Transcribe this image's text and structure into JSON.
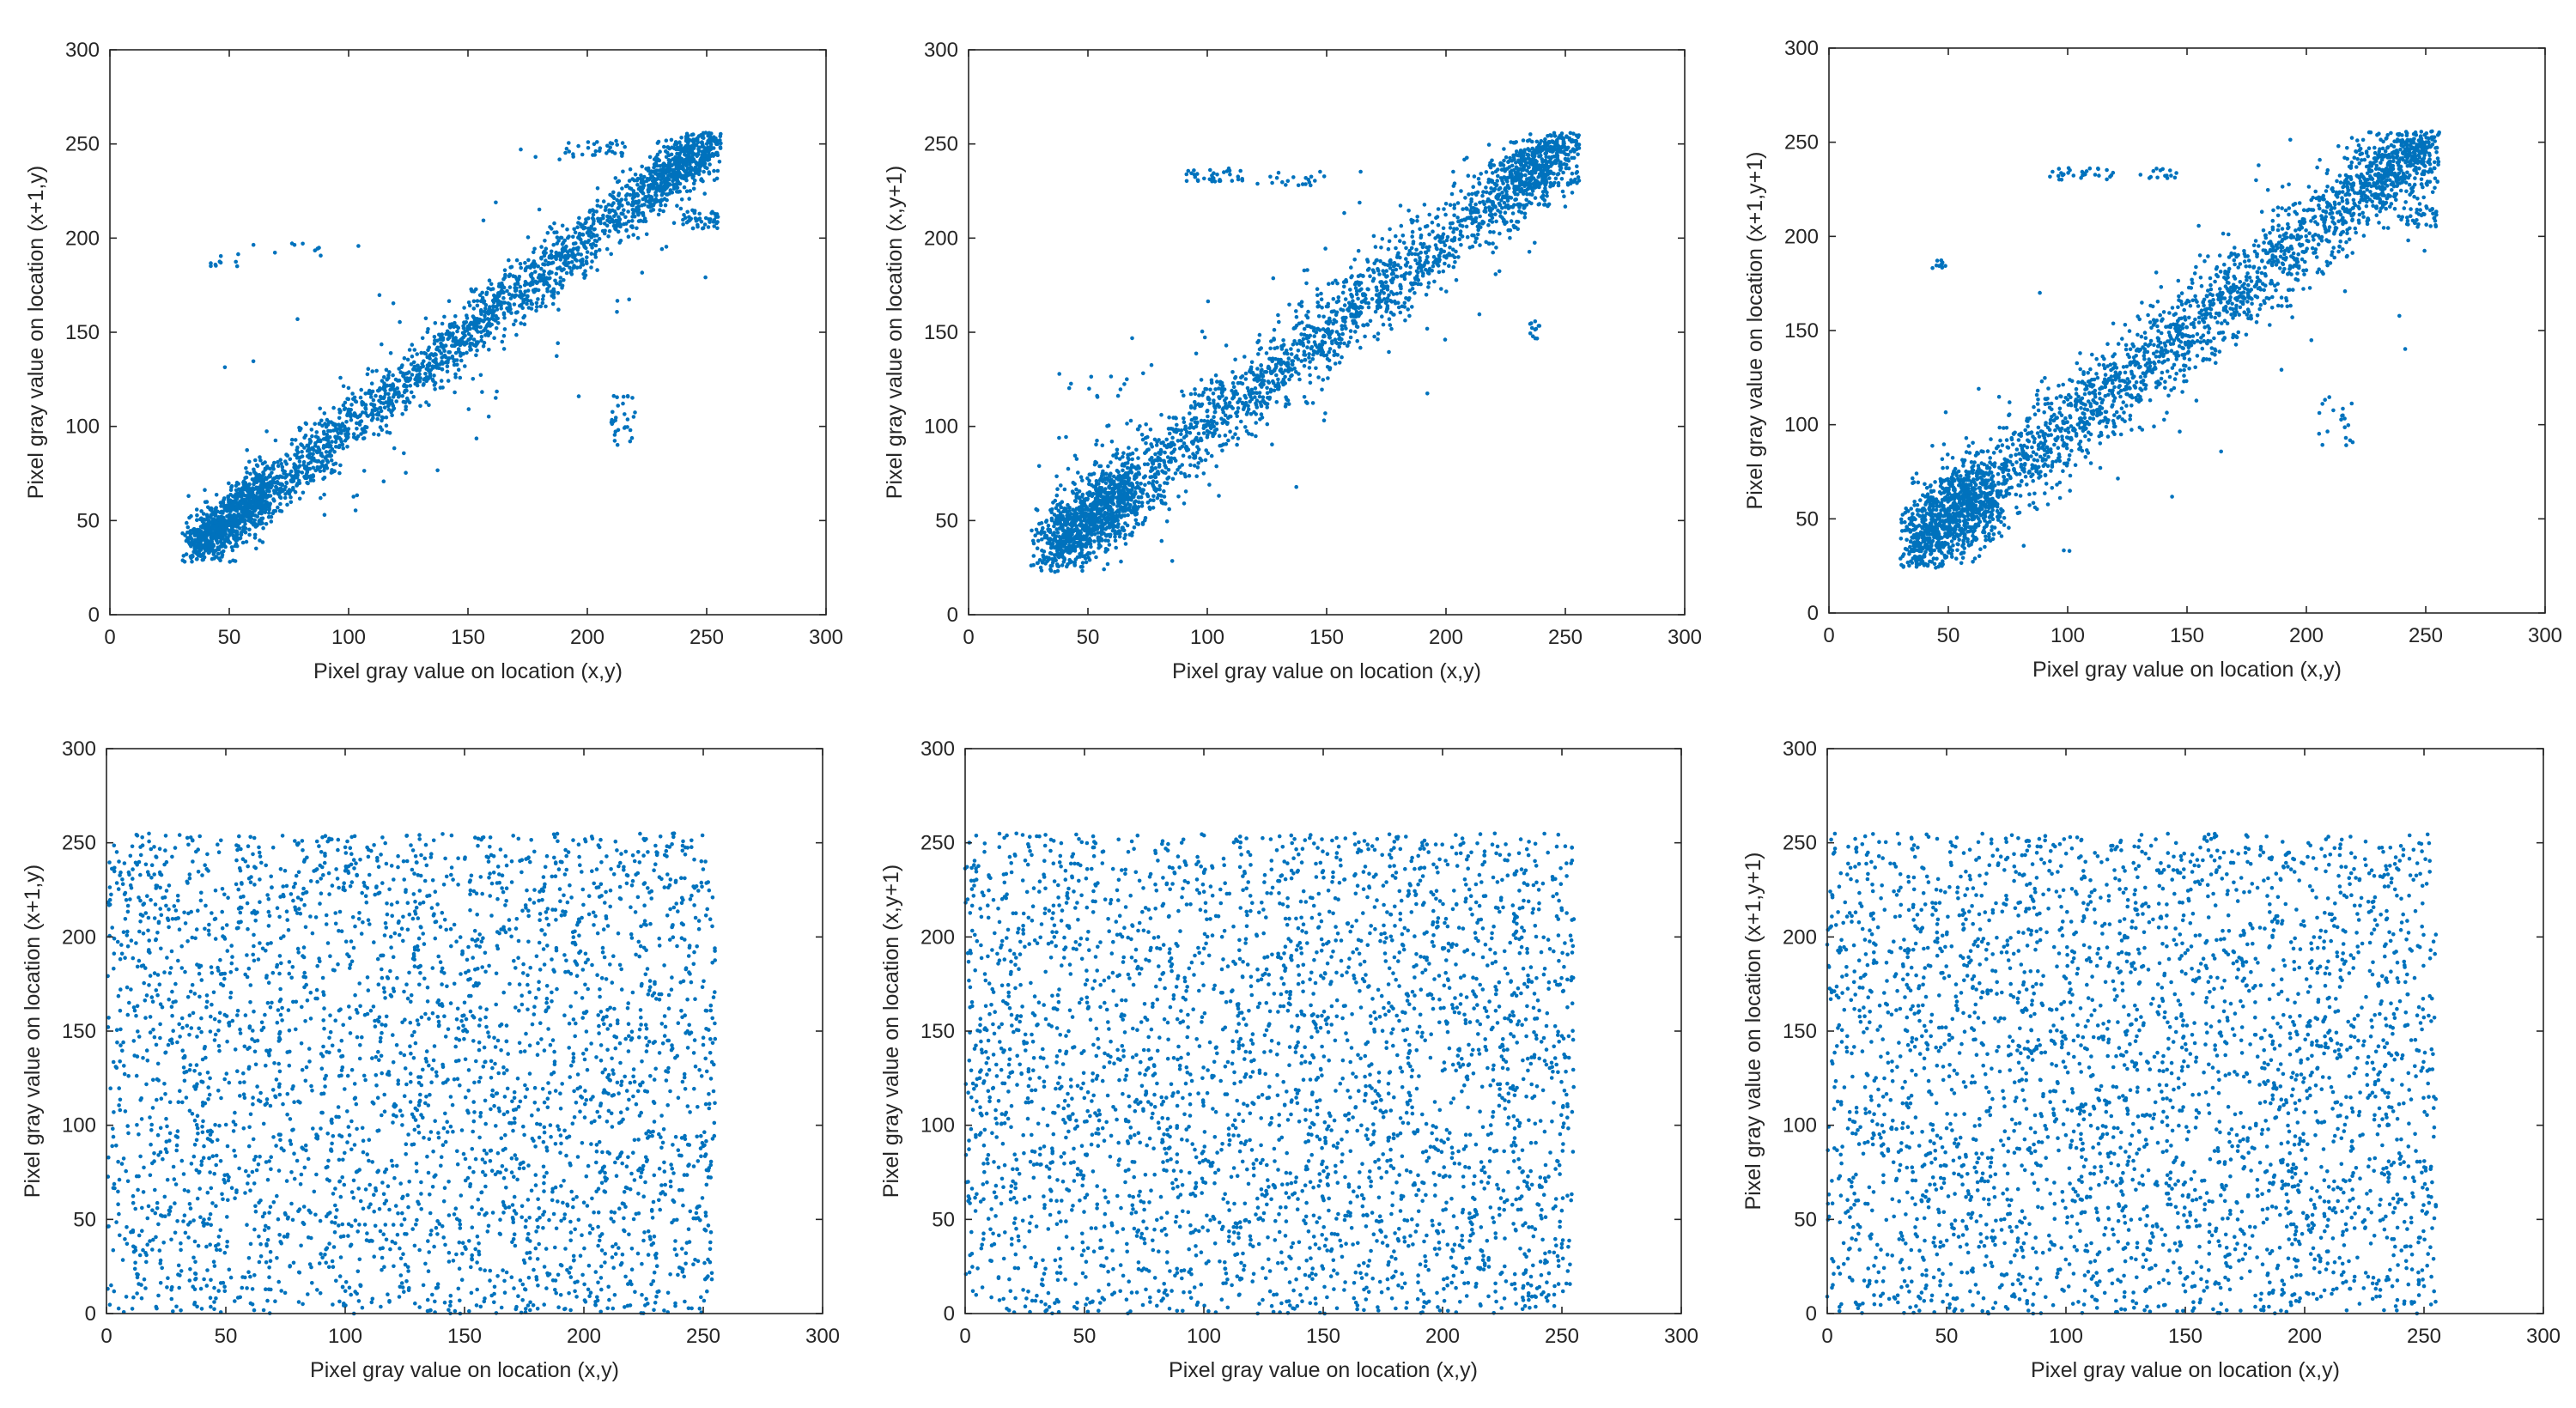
{
  "figure": {
    "rows": 2,
    "cols": 3,
    "marker_color": "#0072BD"
  },
  "chart_data": [
    {
      "type": "scatter",
      "panel": "top-left",
      "title": "",
      "xlabel": "Pixel gray value on location (x,y)",
      "ylabel": "Pixel gray value on location (x+1,y)",
      "xlim": [
        0,
        300
      ],
      "ylim": [
        0,
        300
      ],
      "xticks": [
        0,
        50,
        100,
        150,
        200,
        250,
        300
      ],
      "yticks": [
        0,
        50,
        100,
        150,
        200,
        250,
        300
      ],
      "distribution": "strong positive correlation along y = x",
      "generator": {
        "pattern": "diagonal",
        "n": 3000,
        "spread": 7.5,
        "seed": 11,
        "x_range": [
          33,
          254
        ],
        "y_range": [
          28,
          254
        ]
      },
      "outliers": [
        {
          "x_range": [
            40,
            55
          ],
          "y_range": [
            184,
            192
          ],
          "n": 10
        },
        {
          "x_range": [
            55,
            110
          ],
          "y_range": [
            190,
            200
          ],
          "n": 10
        },
        {
          "x_range": [
            190,
            215
          ],
          "y_range": [
            243,
            252
          ],
          "n": 30
        },
        {
          "x_range": [
            240,
            255
          ],
          "y_range": [
            205,
            215
          ],
          "n": 45
        },
        {
          "x_range": [
            210,
            220
          ],
          "y_range": [
            90,
            120
          ],
          "n": 30
        }
      ]
    },
    {
      "type": "scatter",
      "panel": "top-middle",
      "title": "",
      "xlabel": "Pixel gray value on location (x,y)",
      "ylabel": "Pixel gray value on location (x,y+1)",
      "xlim": [
        0,
        300
      ],
      "ylim": [
        0,
        300
      ],
      "xticks": [
        0,
        50,
        100,
        150,
        200,
        250,
        300
      ],
      "yticks": [
        0,
        50,
        100,
        150,
        200,
        250,
        300
      ],
      "distribution": "strong positive correlation along y = x",
      "generator": {
        "pattern": "diagonal",
        "n": 3000,
        "spread": 10,
        "seed": 23,
        "x_range": [
          30,
          254
        ],
        "y_range": [
          22,
          254
        ]
      },
      "outliers": [
        {
          "x_range": [
            90,
            115
          ],
          "y_range": [
            230,
            237
          ],
          "n": 35
        },
        {
          "x_range": [
            120,
            150
          ],
          "y_range": [
            228,
            236
          ],
          "n": 20
        },
        {
          "x_range": [
            35,
            75
          ],
          "y_range": [
            90,
            130
          ],
          "n": 20
        },
        {
          "x_range": [
            235,
            240
          ],
          "y_range": [
            145,
            156
          ],
          "n": 12
        }
      ]
    },
    {
      "type": "scatter",
      "panel": "top-right",
      "title": "",
      "xlabel": "Pixel gray value on location (x,y)",
      "ylabel": "Pixel gray value on location (x+1,y+1)",
      "xlim": [
        0,
        300
      ],
      "ylim": [
        0,
        300
      ],
      "xticks": [
        0,
        50,
        100,
        150,
        200,
        250,
        300
      ],
      "yticks": [
        0,
        50,
        100,
        150,
        200,
        250,
        300
      ],
      "distribution": "strong positive correlation along y = x with wider spread",
      "generator": {
        "pattern": "diagonal",
        "n": 3000,
        "spread": 12,
        "seed": 37,
        "x_range": [
          33,
          254
        ],
        "y_range": [
          24,
          254
        ]
      },
      "outliers": [
        {
          "x_range": [
            90,
            120
          ],
          "y_range": [
            230,
            237
          ],
          "n": 30
        },
        {
          "x_range": [
            130,
            150
          ],
          "y_range": [
            230,
            236
          ],
          "n": 15
        },
        {
          "x_range": [
            42,
            50
          ],
          "y_range": [
            183,
            190
          ],
          "n": 10
        },
        {
          "x_range": [
            240,
            255
          ],
          "y_range": [
            205,
            215
          ],
          "n": 35
        },
        {
          "x_range": [
            205,
            220
          ],
          "y_range": [
            88,
            115
          ],
          "n": 20
        }
      ]
    },
    {
      "type": "scatter",
      "panel": "bottom-left",
      "title": "",
      "xlabel": "Pixel gray value on location (x,y)",
      "ylabel": "Pixel gray value on location (x+1,y)",
      "xlim": [
        0,
        300
      ],
      "ylim": [
        0,
        300
      ],
      "xticks": [
        0,
        50,
        100,
        150,
        200,
        250,
        300
      ],
      "yticks": [
        0,
        50,
        100,
        150,
        200,
        250,
        300
      ],
      "distribution": "uniform, no correlation, values 0 to 255",
      "generator": {
        "pattern": "uniform",
        "n": 3200,
        "seed": 51,
        "x_range": [
          0,
          255
        ],
        "y_range": [
          0,
          255
        ]
      }
    },
    {
      "type": "scatter",
      "panel": "bottom-middle",
      "title": "",
      "xlabel": "Pixel gray value on location (x,y)",
      "ylabel": "Pixel gray value on location (x,y+1)",
      "xlim": [
        0,
        300
      ],
      "ylim": [
        0,
        300
      ],
      "xticks": [
        0,
        50,
        100,
        150,
        200,
        250,
        300
      ],
      "yticks": [
        0,
        50,
        100,
        150,
        200,
        250,
        300
      ],
      "distribution": "uniform, no correlation, values 0 to 255",
      "generator": {
        "pattern": "uniform",
        "n": 3200,
        "seed": 67,
        "x_range": [
          0,
          255
        ],
        "y_range": [
          0,
          255
        ]
      }
    },
    {
      "type": "scatter",
      "panel": "bottom-right",
      "title": "",
      "xlabel": "Pixel gray value on location (x,y)",
      "ylabel": "Pixel gray value on location (x+1,y+1)",
      "xlim": [
        0,
        300
      ],
      "ylim": [
        0,
        300
      ],
      "xticks": [
        0,
        50,
        100,
        150,
        200,
        250,
        300
      ],
      "yticks": [
        0,
        50,
        100,
        150,
        200,
        250,
        300
      ],
      "distribution": "uniform, no correlation, values 0 to 255",
      "generator": {
        "pattern": "uniform",
        "n": 3200,
        "seed": 83,
        "x_range": [
          0,
          255
        ],
        "y_range": [
          0,
          255
        ]
      }
    }
  ]
}
